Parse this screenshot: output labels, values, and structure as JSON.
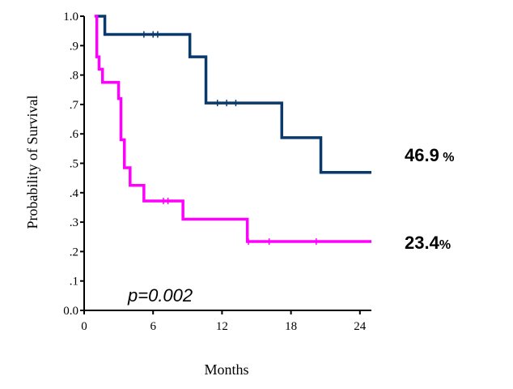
{
  "chart_data": {
    "type": "line",
    "xlabel": "Months",
    "ylabel": "Probability of Survival",
    "xlim": [
      0,
      25
    ],
    "ylim": [
      0,
      1.0
    ],
    "x_ticks": [
      0,
      6,
      12,
      18,
      24
    ],
    "x_tick_labels": [
      "0",
      "6",
      "12",
      "18",
      "24"
    ],
    "y_ticks": [
      0,
      0.1,
      0.2,
      0.3,
      0.4,
      0.5,
      0.6,
      0.7,
      0.8,
      0.9,
      1.0
    ],
    "y_tick_labels": [
      "0.0",
      ".1",
      ".2",
      ".3",
      ".4",
      ".5",
      ".6",
      ".7",
      ".8",
      ".9",
      "1.0"
    ],
    "grid": false,
    "annotation": "p=0.002",
    "series": [
      {
        "color": "#0a3a6b",
        "end_value": "46.9",
        "end_unit": " %",
        "steps": [
          [
            1.0,
            1.0
          ],
          [
            1.8,
            0.938
          ],
          [
            9.2,
            0.862
          ],
          [
            10.6,
            0.705
          ],
          [
            17.2,
            0.587
          ],
          [
            20.6,
            0.469
          ],
          [
            25.0,
            0.469
          ]
        ],
        "censors": [
          [
            5.2,
            0.938
          ],
          [
            6.0,
            0.938
          ],
          [
            6.4,
            0.938
          ],
          [
            11.6,
            0.705
          ],
          [
            12.4,
            0.705
          ],
          [
            13.2,
            0.705
          ]
        ]
      },
      {
        "color": "#ff00ff",
        "end_value": "23.4",
        "end_unit": "%",
        "steps": [
          [
            0.9,
            1.0
          ],
          [
            1.1,
            0.862
          ],
          [
            1.3,
            0.82
          ],
          [
            1.6,
            0.775
          ],
          [
            3.0,
            0.72
          ],
          [
            3.2,
            0.58
          ],
          [
            3.5,
            0.485
          ],
          [
            4.0,
            0.425
          ],
          [
            5.2,
            0.372
          ],
          [
            8.6,
            0.31
          ],
          [
            14.2,
            0.234
          ],
          [
            25.0,
            0.234
          ]
        ],
        "censors": [
          [
            6.9,
            0.372
          ],
          [
            7.3,
            0.372
          ],
          [
            14.3,
            0.234
          ],
          [
            16.1,
            0.234
          ],
          [
            20.2,
            0.234
          ]
        ]
      }
    ]
  }
}
